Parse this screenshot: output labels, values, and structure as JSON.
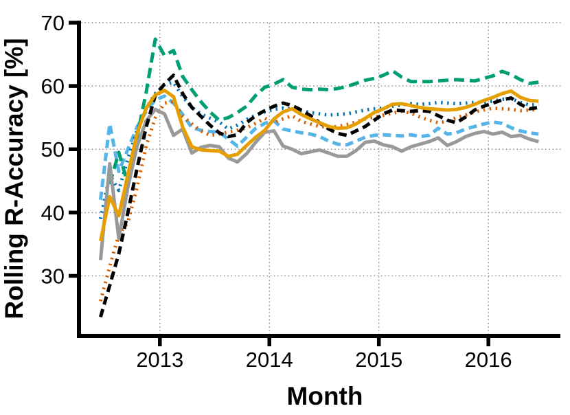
{
  "chart_data": {
    "type": "line",
    "title": "",
    "xlabel": "Month",
    "ylabel": "Rolling R-Accuracy [%]",
    "legend_position": "none",
    "grid": "dotted",
    "grid_color": "#8a8a8a",
    "axis_color": "#000000",
    "x_axis": {
      "ticks": [
        2013,
        2014,
        2015,
        2016
      ],
      "tick_labels": [
        "2013",
        "2014",
        "2015",
        "2016"
      ],
      "range": [
        2012.28,
        2016.67
      ]
    },
    "y_axis": {
      "ticks": [
        30,
        40,
        50,
        60,
        70
      ],
      "tick_labels": [
        "30",
        "40",
        "50",
        "60",
        "70"
      ],
      "range": [
        20.5,
        70
      ]
    },
    "x": [
      2012.458,
      2012.542,
      2012.625,
      2012.708,
      2012.792,
      2012.875,
      2012.958,
      2013.042,
      2013.125,
      2013.208,
      2013.292,
      2013.375,
      2013.458,
      2013.542,
      2013.625,
      2013.708,
      2013.792,
      2013.875,
      2013.958,
      2014.042,
      2014.125,
      2014.208,
      2014.292,
      2014.375,
      2014.458,
      2014.542,
      2014.625,
      2014.708,
      2014.792,
      2014.875,
      2014.958,
      2015.042,
      2015.125,
      2015.208,
      2015.292,
      2015.375,
      2015.458,
      2015.542,
      2015.625,
      2015.708,
      2015.792,
      2015.875,
      2015.958,
      2016.042,
      2016.125,
      2016.208,
      2016.292,
      2016.375,
      2016.458
    ],
    "series": [
      {
        "name": "sky-blue-dashed",
        "color": "#56B4E9",
        "style": "dashed",
        "values": [
          42.0,
          54.0,
          46.5,
          50.0,
          53.5,
          56.0,
          57.8,
          58.4,
          57.3,
          55.5,
          53.4,
          53.0,
          52.8,
          52.7,
          51.6,
          50.5,
          51.9,
          53.3,
          54.1,
          54.5,
          53.2,
          52.9,
          52.6,
          52.4,
          52.0,
          51.3,
          50.8,
          50.7,
          51.3,
          51.9,
          52.2,
          52.3,
          52.2,
          52.1,
          52.3,
          52.0,
          52.2,
          53.3,
          52.4,
          52.6,
          53.2,
          53.6,
          54.0,
          54.3,
          54.1,
          53.4,
          52.9,
          52.6,
          52.4
        ]
      },
      {
        "name": "vermillion-dotted",
        "color": "#D55E00",
        "style": "dotted",
        "values": [
          26.0,
          31.5,
          36.5,
          38.5,
          44.0,
          50.5,
          55.0,
          57.3,
          57.5,
          55.2,
          54.0,
          52.9,
          52.2,
          52.4,
          52.7,
          53.0,
          53.4,
          54.1,
          54.9,
          54.2,
          54.8,
          55.3,
          54.4,
          54.0,
          53.6,
          53.5,
          53.6,
          53.9,
          54.3,
          54.8,
          55.1,
          55.4,
          55.7,
          56.0,
          55.7,
          55.1,
          54.6,
          54.2,
          54.4,
          55.0,
          55.4,
          55.9,
          56.2,
          56.5,
          56.4,
          56.3,
          56.1,
          56.2,
          56.3
        ]
      },
      {
        "name": "blue-dotted",
        "color": "#0072B2",
        "style": "dotted",
        "values": [
          39.0,
          46.0,
          43.5,
          48.5,
          53.0,
          56.5,
          58.8,
          60.2,
          60.6,
          58.3,
          56.6,
          55.6,
          54.9,
          54.3,
          53.2,
          53.8,
          54.7,
          55.4,
          55.9,
          56.3,
          56.5,
          56.3,
          56.1,
          55.8,
          55.6,
          55.4,
          55.5,
          55.6,
          55.9,
          56.2,
          56.4,
          56.5,
          56.8,
          57.0,
          57.2,
          57.1,
          57.2,
          57.4,
          57.3,
          57.2,
          57.3,
          57.4,
          57.4,
          57.6,
          57.9,
          58.0,
          57.4,
          57.0,
          57.1
        ]
      },
      {
        "name": "green-dashed",
        "color": "#009E73",
        "style": "dashed-long",
        "values": [
          null,
          44.5,
          49.5,
          44.5,
          52.0,
          59.0,
          67.4,
          64.8,
          65.6,
          61.5,
          59.4,
          57.5,
          55.9,
          54.6,
          55.0,
          55.8,
          56.8,
          58.5,
          59.8,
          60.3,
          61.0,
          59.8,
          59.5,
          59.4,
          59.5,
          59.4,
          59.6,
          59.9,
          60.4,
          60.9,
          61.2,
          61.7,
          62.4,
          61.4,
          60.7,
          60.7,
          60.7,
          60.8,
          60.9,
          61.0,
          60.9,
          60.8,
          61.2,
          61.6,
          62.3,
          61.8,
          61.0,
          60.4,
          60.6
        ]
      },
      {
        "name": "gray-solid",
        "color": "#999999",
        "style": "solid",
        "values": [
          32.5,
          47.7,
          35.9,
          44.0,
          50.5,
          54.5,
          56.3,
          55.6,
          52.2,
          53.2,
          49.4,
          50.3,
          50.6,
          50.4,
          48.6,
          48.0,
          49.3,
          51.1,
          52.7,
          52.9,
          50.5,
          50.0,
          49.3,
          49.6,
          49.9,
          49.4,
          48.9,
          48.9,
          49.8,
          51.1,
          51.3,
          50.7,
          50.4,
          49.7,
          50.4,
          50.8,
          51.2,
          51.8,
          50.6,
          51.2,
          52.0,
          52.5,
          52.8,
          52.4,
          52.7,
          52.0,
          52.2,
          51.6,
          51.2
        ]
      },
      {
        "name": "black-dashed",
        "color": "#000000",
        "style": "dashed",
        "values": [
          23.5,
          28.5,
          33.5,
          40.0,
          47.0,
          53.5,
          58.5,
          60.3,
          61.7,
          58.8,
          56.6,
          55.2,
          53.8,
          52.6,
          52.0,
          52.3,
          54.2,
          55.3,
          56.1,
          56.8,
          57.3,
          56.9,
          56.2,
          55.3,
          54.2,
          53.2,
          52.5,
          52.2,
          52.9,
          53.6,
          54.6,
          55.6,
          56.2,
          56.1,
          56.0,
          56.1,
          56.0,
          55.3,
          54.6,
          54.2,
          55.1,
          56.2,
          56.8,
          57.3,
          57.8,
          58.1,
          57.1,
          56.4,
          56.6
        ]
      },
      {
        "name": "orange-solid",
        "color": "#E69F00",
        "style": "solid",
        "values": [
          35.5,
          42.5,
          39.5,
          46.0,
          52.5,
          56.5,
          58.6,
          59.3,
          58.3,
          53.5,
          50.4,
          49.9,
          49.8,
          49.7,
          48.9,
          49.2,
          50.6,
          51.9,
          53.0,
          54.8,
          55.9,
          56.4,
          55.5,
          54.8,
          54.2,
          53.6,
          53.3,
          53.4,
          54.0,
          54.9,
          55.8,
          56.4,
          57.1,
          57.2,
          56.9,
          56.6,
          56.4,
          56.3,
          56.2,
          56.3,
          56.6,
          57.1,
          57.7,
          58.2,
          58.8,
          59.2,
          58.2,
          57.7,
          57.6
        ]
      }
    ]
  }
}
